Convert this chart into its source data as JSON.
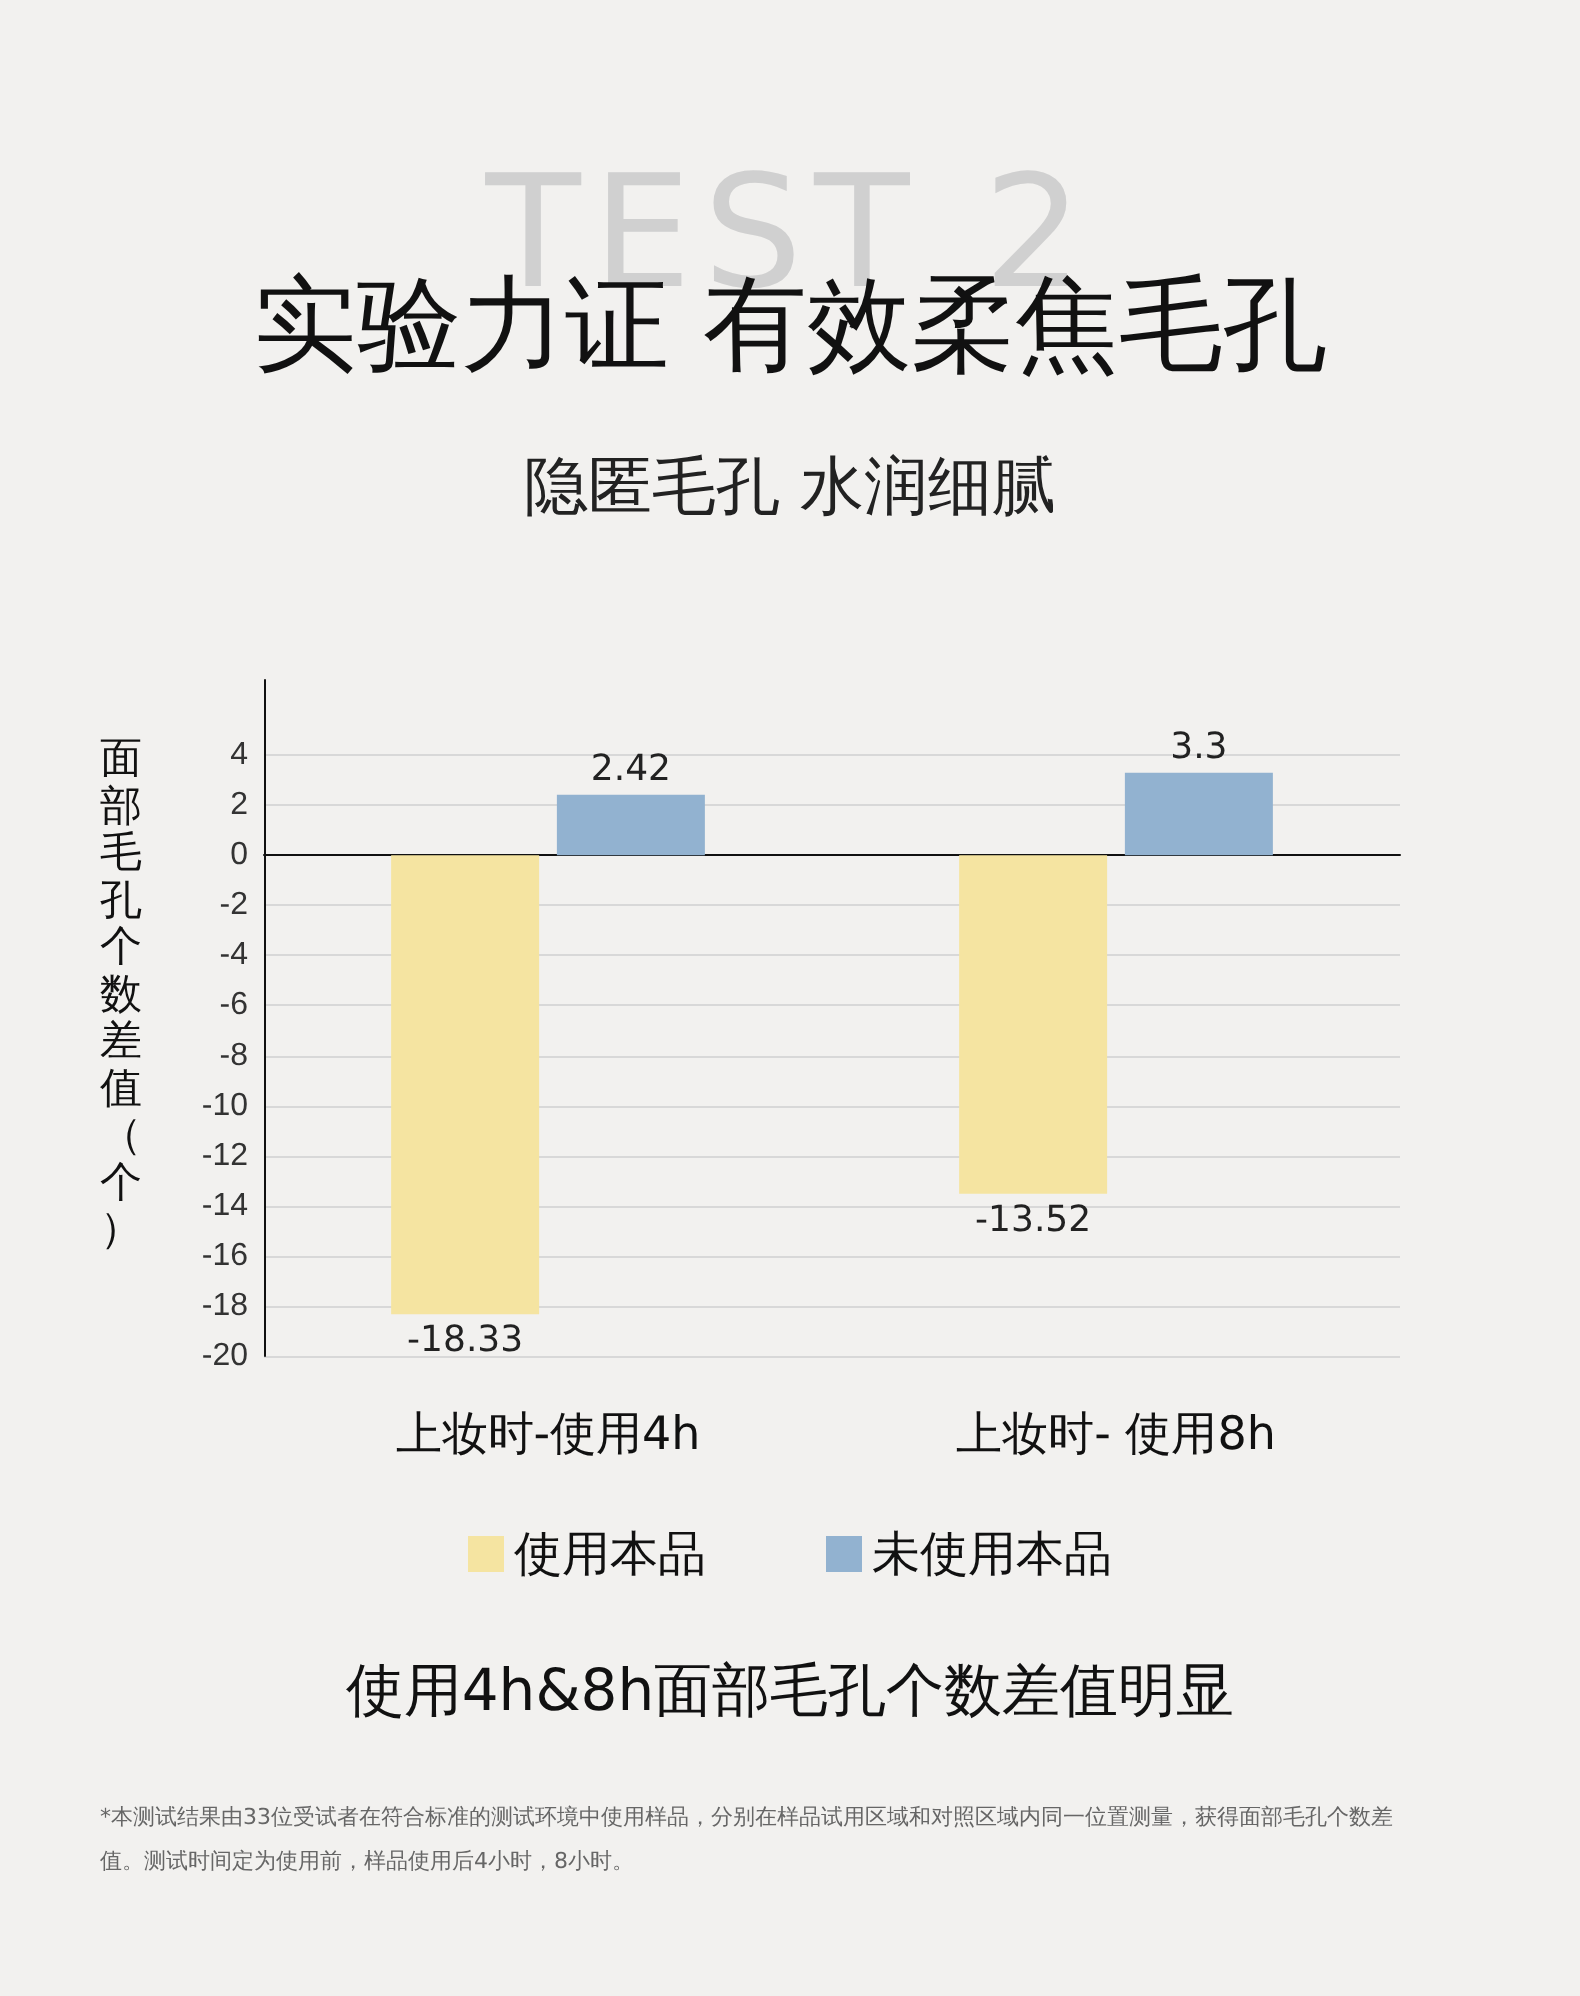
{
  "chart_data": {
    "type": "bar",
    "title": "实验力证 有效柔焦毛孔",
    "subtitle": "隐匿毛孔 水润细腻",
    "ylabel": "面部毛孔个数差值（个）",
    "categories": [
      "上妆时-使用4h",
      "上妆时- 使用8h"
    ],
    "series": [
      {
        "name": "使用本品",
        "color": "#f5e4a1",
        "values": [
          -18.33,
          -13.52
        ]
      },
      {
        "name": "未使用本品",
        "color": "#92b2d0",
        "values": [
          2.42,
          3.3
        ]
      }
    ],
    "ylim": [
      -20,
      7
    ],
    "yticks": [
      -20,
      -18,
      -16,
      -14,
      -12,
      -10,
      -8,
      -6,
      -4,
      -2,
      0,
      2,
      4
    ],
    "grid": "y",
    "legend": "bottom",
    "data_labels": true,
    "annotations": [
      "TEST 2",
      "使用4h&8h面部毛孔个数差值明显",
      "*本测试结果由33位受试者在符合标准的测试环境中使用样品，分别在样品试用区域和对照区域内同一位置测量，获得面部毛孔个数差值。测试时间定为使用前，样品使用后4小时，8小时。"
    ]
  }
}
